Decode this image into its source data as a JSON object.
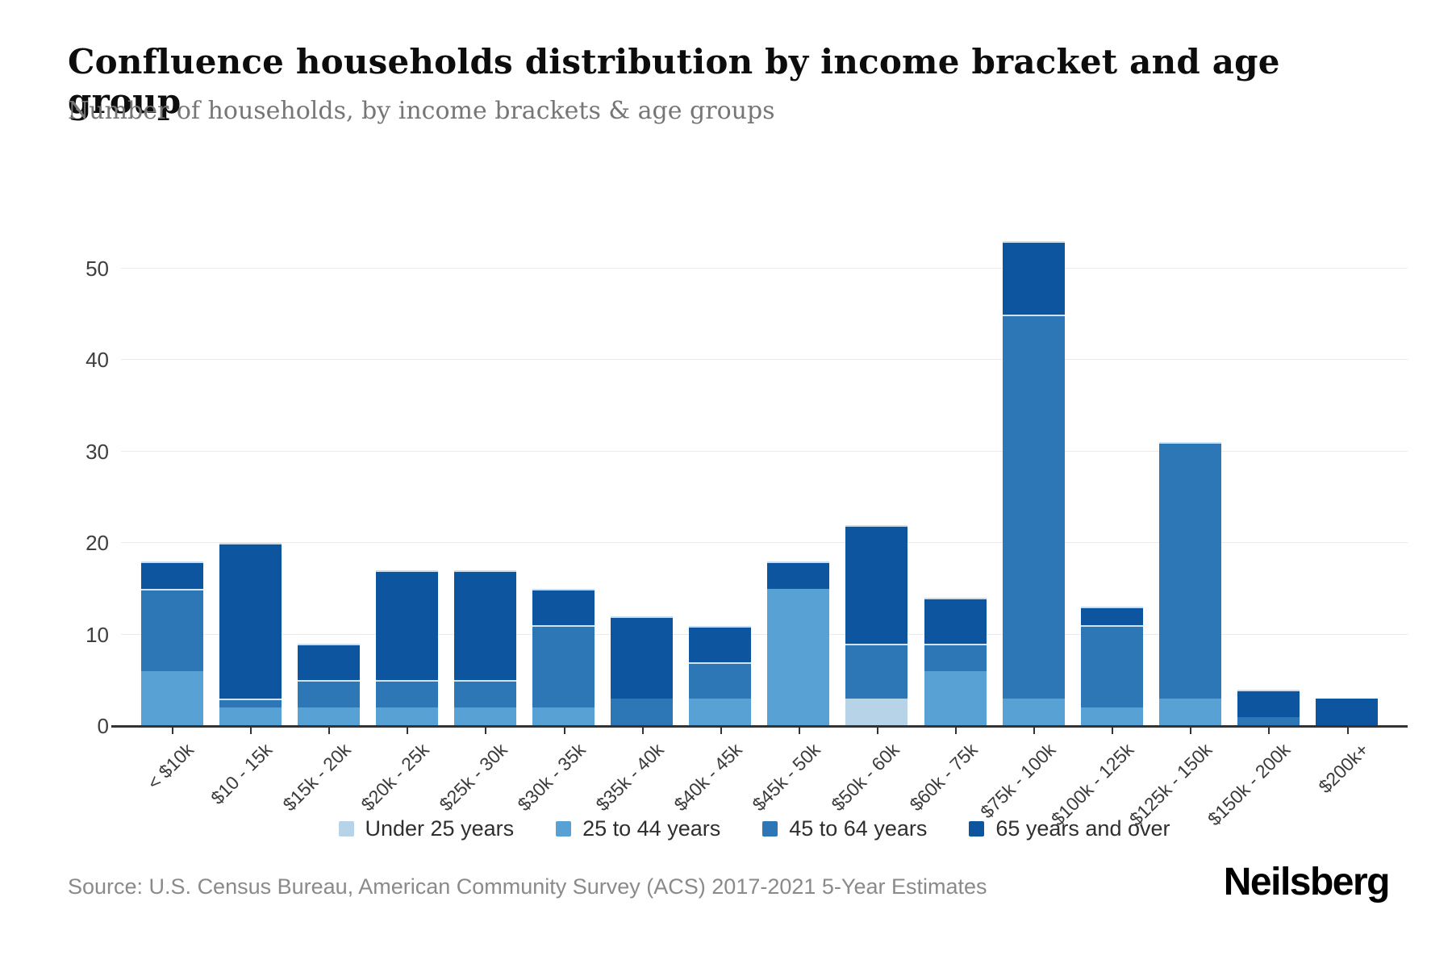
{
  "chart_data": {
    "type": "bar",
    "stacked": true,
    "title": "Confluence households distribution by income bracket and age group",
    "subtitle": "Number of households, by income brackets & age groups",
    "categories": [
      "< $10k",
      "$10 - 15k",
      "$15k - 20k",
      "$20k - 25k",
      "$25k - 30k",
      "$30k - 35k",
      "$35k - 40k",
      "$40k - 45k",
      "$45k - 50k",
      "$50k - 60k",
      "$60k - 75k",
      "$75k - 100k",
      "$100k - 125k",
      "$125k - 150k",
      "$150k - 200k",
      "$200k+"
    ],
    "series": [
      {
        "name": "Under 25 years",
        "color": "#b7d3e8",
        "values": [
          0,
          0,
          0,
          0,
          0,
          0,
          0,
          0,
          0,
          3,
          0,
          0,
          0,
          0,
          0,
          0
        ]
      },
      {
        "name": "25 to 44 years",
        "color": "#58a1d4",
        "values": [
          6,
          2,
          2,
          2,
          2,
          2,
          0,
          3,
          15,
          0,
          6,
          3,
          2,
          3,
          0,
          0
        ]
      },
      {
        "name": "45 to 64 years",
        "color": "#2d77b6",
        "values": [
          9,
          1,
          3,
          3,
          3,
          9,
          3,
          4,
          0,
          6,
          3,
          42,
          9,
          28,
          1,
          0
        ]
      },
      {
        "name": "65 years and over",
        "color": "#0d559f",
        "values": [
          3,
          17,
          4,
          12,
          12,
          4,
          9,
          4,
          3,
          13,
          5,
          8,
          2,
          0,
          3,
          3
        ]
      }
    ],
    "totals": [
      18,
      20,
      9,
      17,
      17,
      15,
      12,
      11,
      18,
      22,
      14,
      53,
      13,
      31,
      4,
      3
    ],
    "y_ticks": [
      0,
      10,
      20,
      30,
      40,
      50
    ],
    "ylim": [
      0,
      54.7
    ],
    "xlabel": "",
    "ylabel": "",
    "grid": "horizontal",
    "legend_position": "bottom"
  },
  "footer": {
    "source": "Source: U.S. Census Bureau, American Community Survey (ACS) 2017-2021 5-Year Estimates",
    "logo": "Neilsberg"
  }
}
